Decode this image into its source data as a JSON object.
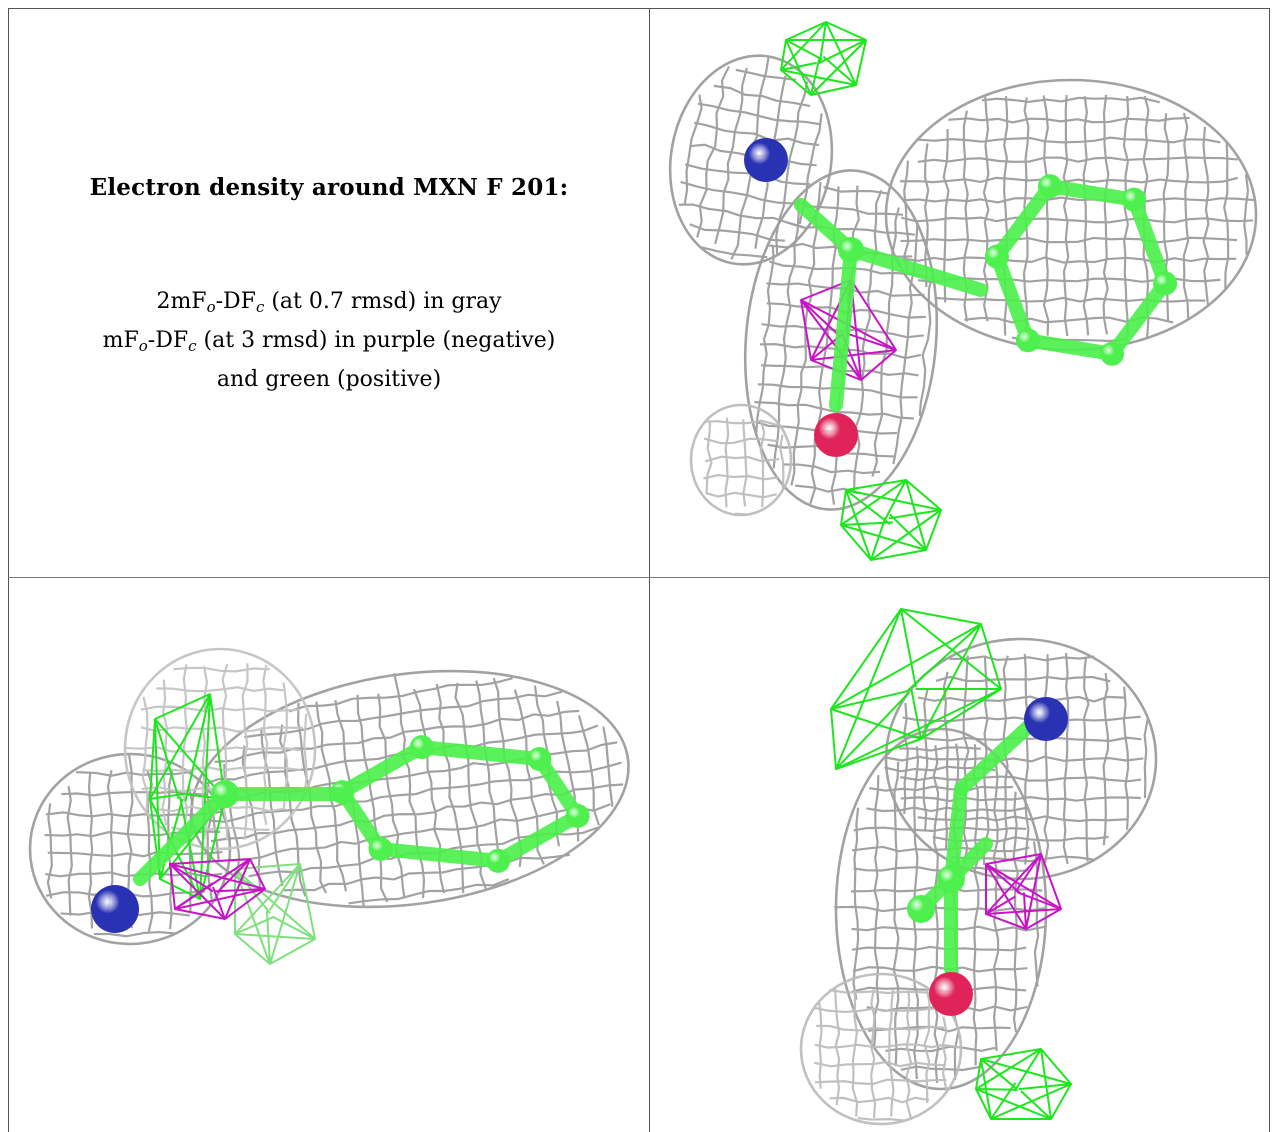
{
  "caption": {
    "heading": "Electron density around MXN F 201:",
    "line1": {
      "a": "2mF",
      "sub1": "o",
      "b": "-DF",
      "sub2": "c",
      "rest": " (at 0.7 rmsd) in gray"
    },
    "line2": {
      "a": "mF",
      "sub1": "o",
      "b": "-DF",
      "sub2": "c",
      "rest": " (at 3 rmsd) in purple (negative)"
    },
    "line3": "and green (positive)"
  },
  "colors": {
    "gray_mesh": "#9e9e9e",
    "positive_mesh": "#1ee61e",
    "negative_mesh": "#c814c8",
    "carbon": "#4df04d",
    "nitrogen": "#2a32b4",
    "oxygen": "#e0245a"
  },
  "panels": [
    "view-top-right",
    "view-bottom-left",
    "view-bottom-right"
  ]
}
